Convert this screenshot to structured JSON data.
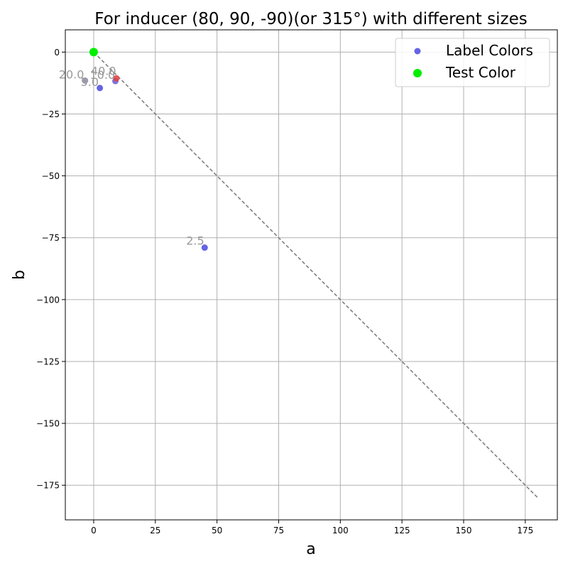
{
  "chart_data": {
    "type": "scatter",
    "title": "For inducer (80, 90, -90)(or 315°) with different sizes",
    "xlabel": "a",
    "ylabel": "b",
    "xlim": [
      -11.5,
      188
    ],
    "ylim": [
      -189,
      9
    ],
    "x_ticks": [
      0,
      25,
      50,
      75,
      100,
      125,
      150,
      175
    ],
    "y_ticks": [
      0,
      -25,
      -50,
      -75,
      -100,
      -125,
      -150,
      -175
    ],
    "x_tick_labels": [
      "0",
      "25",
      "50",
      "75",
      "100",
      "125",
      "150",
      "175"
    ],
    "y_tick_labels": [
      "0",
      "−25",
      "−50",
      "−75",
      "−100",
      "−125",
      "−150",
      "−175"
    ],
    "grid": true,
    "legend_position": "top-right",
    "legend": [
      {
        "label": "Label Colors",
        "color": "#4a4ae0"
      },
      {
        "label": "Test Color",
        "color": "#00ee00"
      }
    ],
    "reference_line": {
      "x": [
        0,
        180
      ],
      "y": [
        0,
        -180
      ],
      "style": "dashed",
      "color": "#808080"
    },
    "label_points": [
      {
        "label": "2.5",
        "a": 45.0,
        "b": -79.0,
        "color": "#4a4ae0"
      },
      {
        "label": "5.0",
        "a": 2.5,
        "b": -14.5,
        "color": "#4a4ae0"
      },
      {
        "label": "10.0",
        "a": 8.8,
        "b": -11.7,
        "color": "#6a5acd"
      },
      {
        "label": "40.0",
        "a": 9.2,
        "b": -10.6,
        "color": "#e04040"
      },
      {
        "label": "20.0",
        "a": -3.5,
        "b": -11.5,
        "color": "#8888aa"
      }
    ],
    "test_point": {
      "a": 0,
      "b": 0,
      "color": "#00ee00"
    }
  }
}
